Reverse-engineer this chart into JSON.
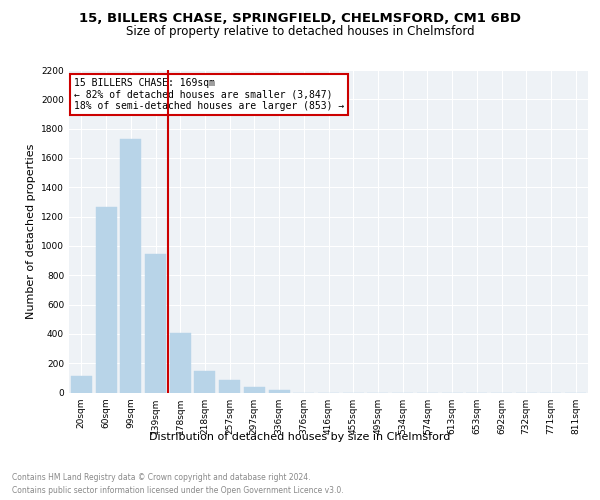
{
  "title1": "15, BILLERS CHASE, SPRINGFIELD, CHELMSFORD, CM1 6BD",
  "title2": "Size of property relative to detached houses in Chelmsford",
  "xlabel": "Distribution of detached houses by size in Chelmsford",
  "ylabel": "Number of detached properties",
  "categories": [
    "20sqm",
    "60sqm",
    "99sqm",
    "139sqm",
    "178sqm",
    "218sqm",
    "257sqm",
    "297sqm",
    "336sqm",
    "376sqm",
    "416sqm",
    "455sqm",
    "495sqm",
    "534sqm",
    "574sqm",
    "613sqm",
    "653sqm",
    "692sqm",
    "732sqm",
    "771sqm",
    "811sqm"
  ],
  "values": [
    110,
    1265,
    1730,
    945,
    405,
    145,
    85,
    40,
    20,
    0,
    0,
    0,
    0,
    0,
    0,
    0,
    0,
    0,
    0,
    0,
    0
  ],
  "bar_color": "#b8d4e8",
  "bar_edgecolor": "#b8d4e8",
  "marker_bin_index": 4,
  "marker_line_color": "#cc0000",
  "annotation_line1": "15 BILLERS CHASE: 169sqm",
  "annotation_line2": "← 82% of detached houses are smaller (3,847)",
  "annotation_line3": "18% of semi-detached houses are larger (853) →",
  "annotation_box_color": "#cc0000",
  "ylim": [
    0,
    2200
  ],
  "yticks": [
    0,
    200,
    400,
    600,
    800,
    1000,
    1200,
    1400,
    1600,
    1800,
    2000,
    2200
  ],
  "footer1": "Contains HM Land Registry data © Crown copyright and database right 2024.",
  "footer2": "Contains public sector information licensed under the Open Government Licence v3.0.",
  "bg_color": "#eef2f6",
  "grid_color": "#ffffff",
  "title_fontsize": 9.5,
  "subtitle_fontsize": 8.5,
  "axis_label_fontsize": 8,
  "tick_fontsize": 6.5,
  "annotation_fontsize": 7,
  "footer_fontsize": 5.5
}
